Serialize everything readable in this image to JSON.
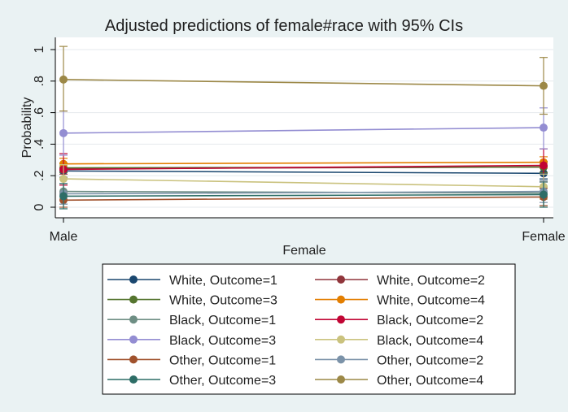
{
  "chart_data": {
    "type": "line",
    "title": "Adjusted predictions of female#race with 95% CIs",
    "xlabel": "Female",
    "ylabel": "Probability",
    "categories": [
      "Male",
      "Female"
    ],
    "y_ticks": [
      {
        "value": 0,
        "label": "0"
      },
      {
        "value": 0.2,
        "label": ".2"
      },
      {
        "value": 0.4,
        "label": ".4"
      },
      {
        "value": 0.6,
        "label": ".6"
      },
      {
        "value": 0.8,
        "label": ".8"
      },
      {
        "value": 1,
        "label": "1"
      }
    ],
    "ylim": [
      -0.02,
      1.08
    ],
    "grid": true,
    "legend_position": "bottom",
    "series": [
      {
        "name": "White, Outcome=1",
        "color": "#1a476f",
        "values": [
          0.23,
          0.215
        ],
        "ci": [
          [
            0.19,
            0.27
          ],
          [
            0.18,
            0.25
          ]
        ]
      },
      {
        "name": "White, Outcome=2",
        "color": "#90353b",
        "values": [
          0.245,
          0.255
        ],
        "ci": [
          [
            0.21,
            0.28
          ],
          [
            0.22,
            0.29
          ]
        ]
      },
      {
        "name": "White, Outcome=3",
        "color": "#55752f",
        "values": [
          0.25,
          0.255
        ],
        "ci": [
          [
            0.22,
            0.28
          ],
          [
            0.22,
            0.29
          ]
        ]
      },
      {
        "name": "White, Outcome=4",
        "color": "#e37e00",
        "values": [
          0.275,
          0.285
        ],
        "ci": [
          [
            0.24,
            0.31
          ],
          [
            0.25,
            0.32
          ]
        ]
      },
      {
        "name": "Black, Outcome=1",
        "color": "#6e8e84",
        "values": [
          0.1,
          0.09
        ],
        "ci": [
          [
            0.02,
            0.18
          ],
          [
            0.01,
            0.17
          ]
        ]
      },
      {
        "name": "Black, Outcome=2",
        "color": "#c10534",
        "values": [
          0.24,
          0.265
        ],
        "ci": [
          [
            0.14,
            0.34
          ],
          [
            0.16,
            0.37
          ]
        ]
      },
      {
        "name": "Black, Outcome=3",
        "color": "#938dd2",
        "values": [
          0.47,
          0.505
        ],
        "ci": [
          [
            0.33,
            0.61
          ],
          [
            0.37,
            0.63
          ]
        ]
      },
      {
        "name": "Black, Outcome=4",
        "color": "#cac27e",
        "values": [
          0.18,
          0.13
        ],
        "ci": [
          [
            0.09,
            0.27
          ],
          [
            0.05,
            0.21
          ]
        ]
      },
      {
        "name": "Other, Outcome=1",
        "color": "#a0522d",
        "values": [
          0.045,
          0.065
        ],
        "ci": [
          [
            0.0,
            0.09
          ],
          [
            0.01,
            0.12
          ]
        ]
      },
      {
        "name": "Other, Outcome=2",
        "color": "#7b92a8",
        "values": [
          0.085,
          0.1
        ],
        "ci": [
          [
            0.02,
            0.15
          ],
          [
            0.03,
            0.17
          ]
        ]
      },
      {
        "name": "Other, Outcome=3",
        "color": "#2d6d66",
        "values": [
          0.07,
          0.08
        ],
        "ci": [
          [
            -0.01,
            0.15
          ],
          [
            0.0,
            0.16
          ]
        ]
      },
      {
        "name": "Other, Outcome=4",
        "color": "#9c8847",
        "values": [
          0.81,
          0.77
        ],
        "ci": [
          [
            0.61,
            1.02
          ],
          [
            0.59,
            0.95
          ]
        ]
      }
    ]
  }
}
